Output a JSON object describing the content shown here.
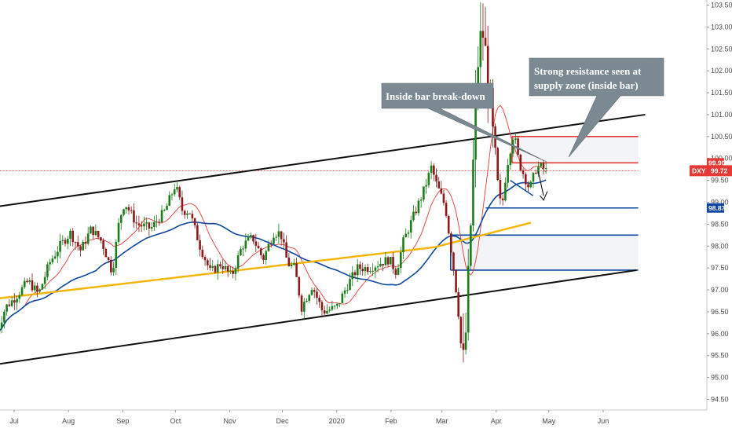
{
  "chart_data": {
    "type": "candlestick",
    "symbol": "DXY",
    "last_price": "99.72",
    "price_tags": [
      {
        "label": "99.90",
        "value": 99.9,
        "color": "#e53935"
      },
      {
        "label": "98.87",
        "value": 98.87,
        "color": "#0d47a1"
      }
    ],
    "y_ticks": [
      "94.50",
      "95.00",
      "95.50",
      "96.00",
      "96.50",
      "97.00",
      "97.50",
      "98.00",
      "98.50",
      "99.00",
      "99.50",
      "100.00",
      "100.50",
      "101.00",
      "101.50",
      "102.00",
      "102.50",
      "103.00",
      "103.50"
    ],
    "x_ticks": [
      {
        "label": "Jul",
        "day": 0
      },
      {
        "label": "Aug",
        "day": 31
      },
      {
        "label": "Sep",
        "day": 62
      },
      {
        "label": "Oct",
        "day": 92
      },
      {
        "label": "Nov",
        "day": 123
      },
      {
        "label": "Dec",
        "day": 153
      },
      {
        "label": "2020",
        "day": 184
      },
      {
        "label": "Feb",
        "day": 215
      },
      {
        "label": "Mar",
        "day": 244
      },
      {
        "label": "Apr",
        "day": 275
      },
      {
        "label": "May",
        "day": 305
      },
      {
        "label": "Jun",
        "day": 336
      }
    ],
    "price_path": [
      [
        -10,
        96.0
      ],
      [
        -5,
        96.6
      ],
      [
        0,
        96.8
      ],
      [
        8,
        97.2
      ],
      [
        14,
        96.9
      ],
      [
        20,
        97.6
      ],
      [
        26,
        98.0
      ],
      [
        32,
        98.3
      ],
      [
        38,
        97.9
      ],
      [
        44,
        98.4
      ],
      [
        50,
        98.1
      ],
      [
        56,
        97.4
      ],
      [
        60,
        98.6
      ],
      [
        63,
        99.0
      ],
      [
        70,
        98.5
      ],
      [
        78,
        98.4
      ],
      [
        86,
        98.8
      ],
      [
        92,
        99.4
      ],
      [
        96,
        98.8
      ],
      [
        100,
        98.8
      ],
      [
        106,
        98.0
      ],
      [
        112,
        97.4
      ],
      [
        118,
        97.6
      ],
      [
        124,
        97.3
      ],
      [
        130,
        98.0
      ],
      [
        136,
        98.2
      ],
      [
        142,
        97.7
      ],
      [
        148,
        98.3
      ],
      [
        152,
        98.3
      ],
      [
        156,
        97.6
      ],
      [
        160,
        97.5
      ],
      [
        164,
        96.6
      ],
      [
        170,
        97.1
      ],
      [
        176,
        96.5
      ],
      [
        184,
        96.6
      ],
      [
        190,
        97.1
      ],
      [
        196,
        97.5
      ],
      [
        202,
        97.5
      ],
      [
        208,
        97.6
      ],
      [
        214,
        97.7
      ],
      [
        218,
        97.4
      ],
      [
        222,
        98.1
      ],
      [
        228,
        98.7
      ],
      [
        234,
        99.3
      ],
      [
        238,
        99.8
      ],
      [
        241,
        99.4
      ],
      [
        246,
        98.9
      ],
      [
        250,
        97.7
      ],
      [
        253,
        96.7
      ],
      [
        256,
        95.2
      ],
      [
        258,
        96.2
      ],
      [
        261,
        99.0
      ],
      [
        264,
        102.0
      ],
      [
        267,
        103.0
      ],
      [
        270,
        102.0
      ],
      [
        274,
        100.0
      ],
      [
        278,
        98.8
      ],
      [
        281,
        99.8
      ],
      [
        285,
        100.6
      ],
      [
        288,
        99.9
      ],
      [
        291,
        99.6
      ],
      [
        294,
        99.3
      ],
      [
        298,
        99.8
      ],
      [
        301,
        99.8
      ],
      [
        304,
        99.7
      ]
    ],
    "moving_averages": [
      {
        "name": "MA fast",
        "color": "#e53935",
        "width": 0.9
      },
      {
        "name": "MA 50",
        "color": "#0d47a1",
        "width": 1.6
      },
      {
        "name": "MA 200",
        "color": "#f5b400",
        "width": 2.4
      }
    ],
    "channel": {
      "upper": [
        [
          -10,
          98.9
        ],
        [
          360,
          101.0
        ]
      ],
      "lower": [
        [
          -10,
          95.3
        ],
        [
          355,
          97.45
        ]
      ]
    },
    "zones": [
      {
        "name": "supply",
        "y1": 99.9,
        "y2": 100.5,
        "start": 284,
        "end": 356,
        "border": "#e53935"
      },
      {
        "name": "demand",
        "y1": 97.45,
        "y2": 98.25,
        "start": 249,
        "end": 356,
        "border": "#0d47a1"
      }
    ],
    "levels": [
      {
        "value": 99.72,
        "start": -10,
        "end": 356,
        "color": "#e53935",
        "dashed": true
      },
      {
        "value": 98.87,
        "start": 269,
        "end": 356,
        "color": "#0d47a1",
        "dashed": false
      }
    ],
    "annotations": [
      {
        "lines": [
          "Inside bar break-down"
        ]
      },
      {
        "lines": [
          "Strong resistance seen at",
          "supply zone (inside bar)"
        ]
      }
    ],
    "colors": {
      "up": "#1b7e1b",
      "down": "#8b1a1a",
      "callout_bg": "#7b8a92",
      "accent_red": "#e53935",
      "accent_blue": "#0d47a1",
      "accent_gold": "#f5b400"
    },
    "ylim": [
      94.2,
      103.6
    ],
    "xlim": [
      -10,
      364
    ]
  }
}
